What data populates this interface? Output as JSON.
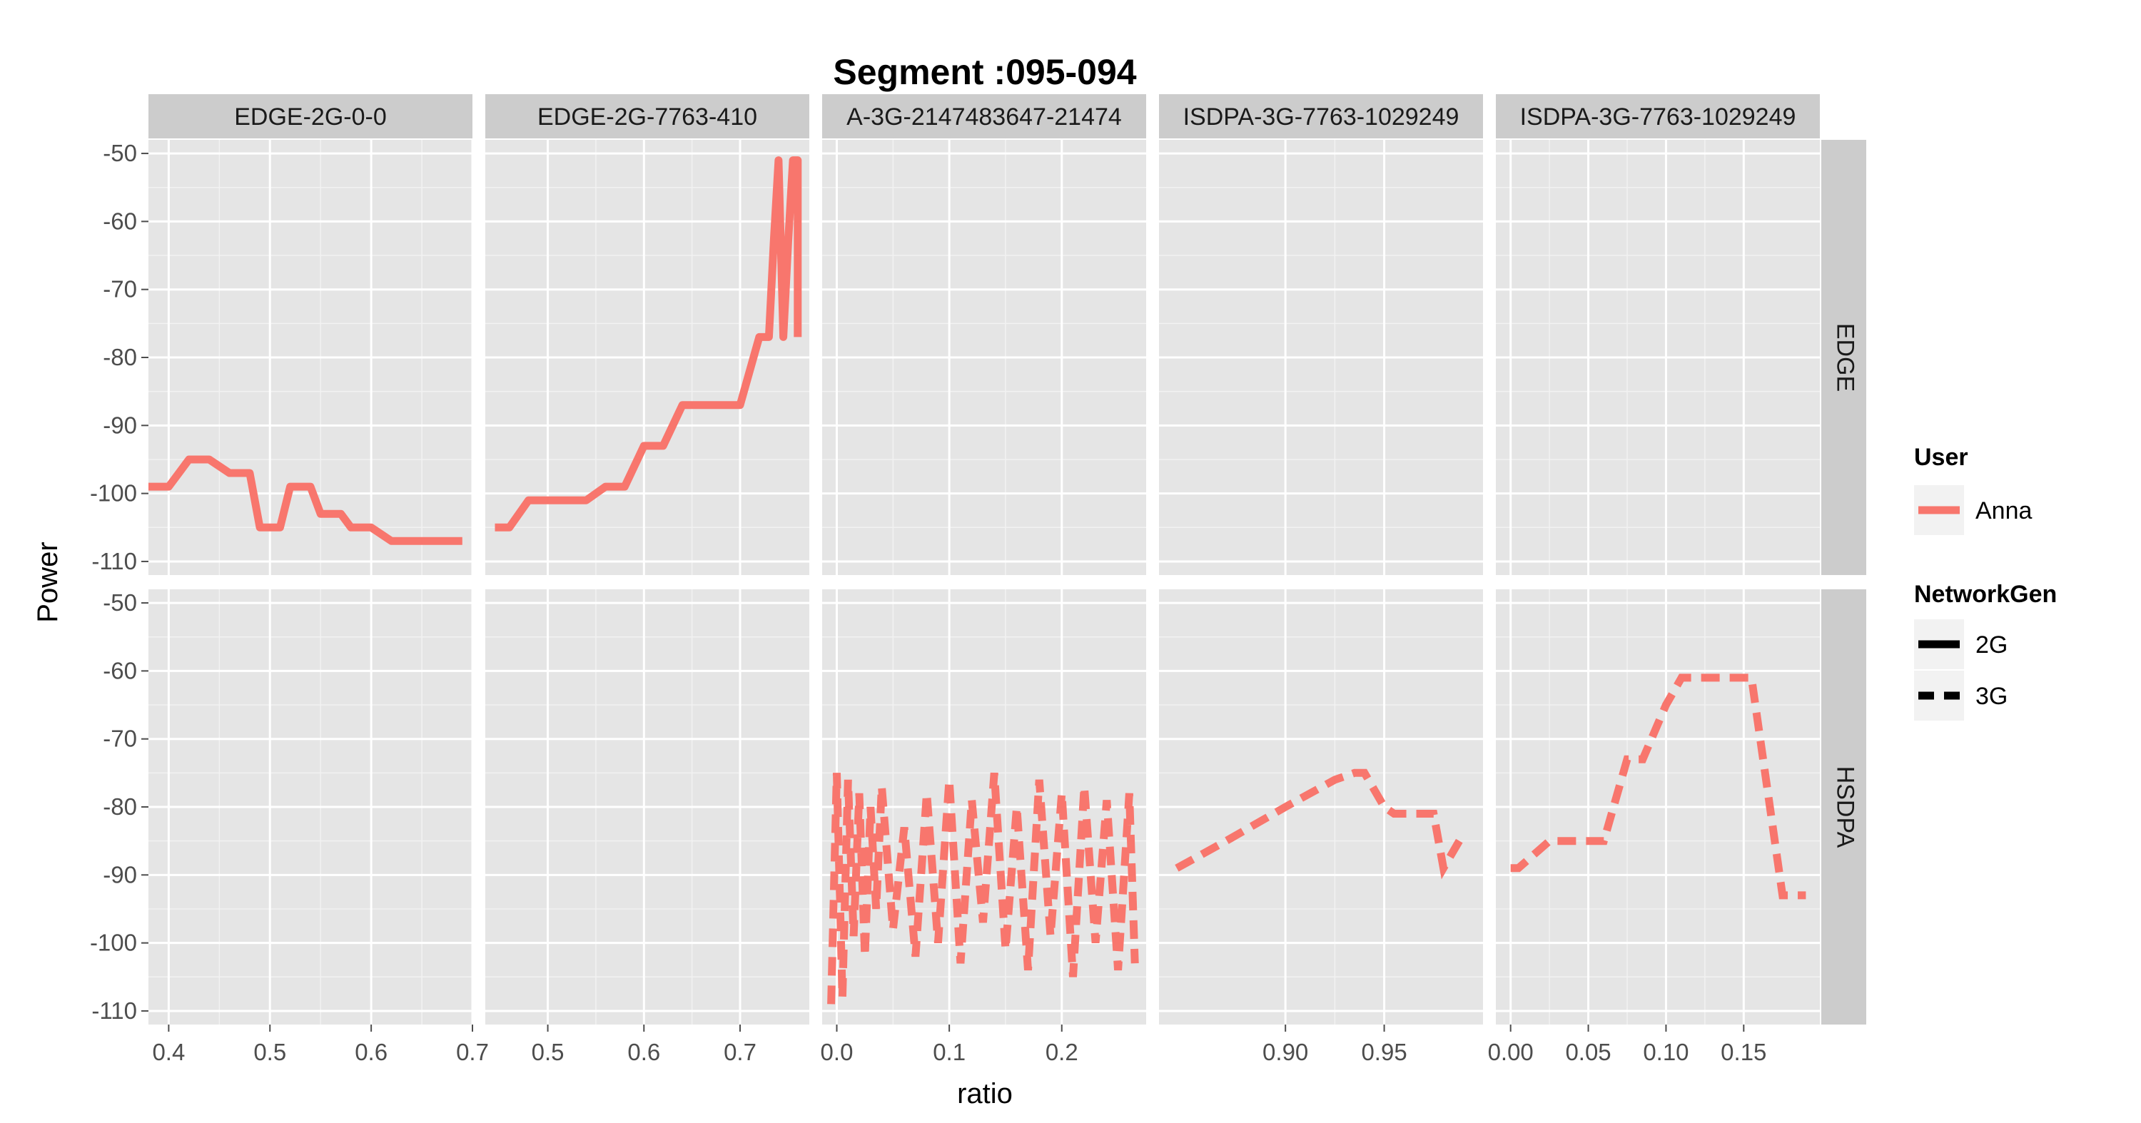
{
  "chart_data": {
    "type": "line",
    "title": "Segment :095-094",
    "xlabel": "ratio",
    "ylabel": "Power",
    "ylim": [
      -112,
      -48
    ],
    "y_ticks": [
      -50,
      -60,
      -70,
      -80,
      -90,
      -100,
      -110
    ],
    "y_tick_labels": [
      "-50",
      "-60",
      "-70",
      "-80",
      "-90",
      "-100",
      "-110"
    ],
    "grid": true,
    "colors": {
      "series": "#F8766D",
      "panel_bg": "#E5E5E5",
      "strip_bg": "#CCCCCC",
      "grid": "#FFFFFF"
    },
    "columns": [
      {
        "strip_label": "EDGE-2G-0-0",
        "xlim": [
          0.38,
          0.7
        ],
        "x_ticks": [
          0.4,
          0.5,
          0.6,
          0.7
        ],
        "x_tick_labels": [
          "0.4",
          "0.5",
          "0.6",
          "0.7"
        ]
      },
      {
        "strip_label": "EDGE-2G-7763-410",
        "xlim": [
          0.435,
          0.772
        ],
        "x_ticks": [
          0.5,
          0.6,
          0.7
        ],
        "x_tick_labels": [
          "0.5",
          "0.6",
          "0.7"
        ]
      },
      {
        "strip_label": "A-3G-2147483647-21474",
        "xlim": [
          -0.013,
          0.275
        ],
        "x_ticks": [
          0.0,
          0.1,
          0.2
        ],
        "x_tick_labels": [
          "0.0",
          "0.1",
          "0.2"
        ]
      },
      {
        "strip_label": "ISDPA-3G-7763-1029249",
        "xlim": [
          0.836,
          1.0
        ],
        "x_ticks": [
          0.9,
          0.95
        ],
        "x_tick_labels": [
          "0.90",
          "0.95"
        ]
      },
      {
        "strip_label": "ISDPA-3G-7763-1029249",
        "xlim": [
          -0.0095,
          0.199
        ],
        "x_ticks": [
          0.0,
          0.05,
          0.1,
          0.15
        ],
        "x_tick_labels": [
          "0.00",
          "0.05",
          "0.10",
          "0.15"
        ]
      }
    ],
    "rows": [
      {
        "strip_label": "EDGE"
      },
      {
        "strip_label": "HSDPA"
      }
    ],
    "series": [
      {
        "name": "EDGE-2G-0-0 / EDGE",
        "user": "Anna",
        "network_gen": "2G",
        "col": 0,
        "row": 0,
        "x": [
          0.38,
          0.39,
          0.4,
          0.42,
          0.44,
          0.46,
          0.48,
          0.49,
          0.51,
          0.52,
          0.54,
          0.55,
          0.57,
          0.58,
          0.6,
          0.62,
          0.63,
          0.65,
          0.67,
          0.69
        ],
        "y": [
          -99,
          -99,
          -99,
          -95,
          -95,
          -97,
          -97,
          -105,
          -105,
          -99,
          -99,
          -103,
          -103,
          -105,
          -105,
          -107,
          -107,
          -107,
          -107,
          -107
        ]
      },
      {
        "name": "EDGE-2G-7763-410 / EDGE",
        "user": "Anna",
        "network_gen": "2G",
        "col": 1,
        "row": 0,
        "x": [
          0.445,
          0.46,
          0.48,
          0.5,
          0.52,
          0.54,
          0.56,
          0.58,
          0.6,
          0.62,
          0.64,
          0.66,
          0.68,
          0.7,
          0.72,
          0.73,
          0.735,
          0.74,
          0.745,
          0.75,
          0.755,
          0.76,
          0.76
        ],
        "y": [
          -105,
          -105,
          -101,
          -101,
          -101,
          -101,
          -99,
          -99,
          -93,
          -93,
          -87,
          -87,
          -87,
          -87,
          -77,
          -77,
          -63,
          -51,
          -77,
          -63,
          -51,
          -51,
          -77
        ]
      },
      {
        "name": "A-3G-2147483647-21474 / HSDPA",
        "user": "Anna",
        "network_gen": "3G",
        "col": 2,
        "row": 1,
        "x": [
          -0.005,
          0.0,
          0.005,
          0.01,
          0.015,
          0.02,
          0.025,
          0.03,
          0.035,
          0.04,
          0.05,
          0.06,
          0.07,
          0.08,
          0.09,
          0.1,
          0.11,
          0.12,
          0.13,
          0.14,
          0.15,
          0.16,
          0.17,
          0.18,
          0.19,
          0.2,
          0.21,
          0.22,
          0.23,
          0.24,
          0.25,
          0.26,
          0.265
        ],
        "y": [
          -109,
          -75,
          -108,
          -76,
          -99,
          -78,
          -102,
          -80,
          -95,
          -77,
          -98,
          -83,
          -102,
          -78,
          -100,
          -76,
          -103,
          -79,
          -97,
          -75,
          -101,
          -80,
          -104,
          -76,
          -99,
          -78,
          -105,
          -77,
          -100,
          -79,
          -104,
          -78,
          -103
        ]
      },
      {
        "name": "ISDPA-3G-7763-1029249 / HSDPA",
        "user": "Anna",
        "network_gen": "3G",
        "col": 3,
        "row": 1,
        "x": [
          0.845,
          0.87,
          0.9,
          0.925,
          0.935,
          0.94,
          0.95,
          0.955,
          0.965,
          0.975,
          0.98,
          0.99
        ],
        "y": [
          -89,
          -85,
          -80,
          -76,
          -75,
          -75,
          -80,
          -81,
          -81,
          -81,
          -89,
          -84
        ]
      },
      {
        "name": "ISDPA-3G-7763-1029249 / HSDPA",
        "user": "Anna",
        "network_gen": "3G",
        "col": 4,
        "row": 1,
        "x": [
          0.0,
          0.005,
          0.025,
          0.045,
          0.06,
          0.075,
          0.085,
          0.1,
          0.11,
          0.13,
          0.155,
          0.175,
          0.18,
          0.19
        ],
        "y": [
          -89,
          -89,
          -85,
          -85,
          -85,
          -73,
          -73,
          -65,
          -61,
          -61,
          -61,
          -93,
          -93,
          -93
        ]
      }
    ]
  },
  "legend": {
    "user_title": "User",
    "user_items": [
      {
        "label": "Anna",
        "color": "#F8766D"
      }
    ],
    "network_title": "NetworkGen",
    "network_items": [
      {
        "label": "2G",
        "dash": "solid"
      },
      {
        "label": "3G",
        "dash": "dashed"
      }
    ]
  }
}
